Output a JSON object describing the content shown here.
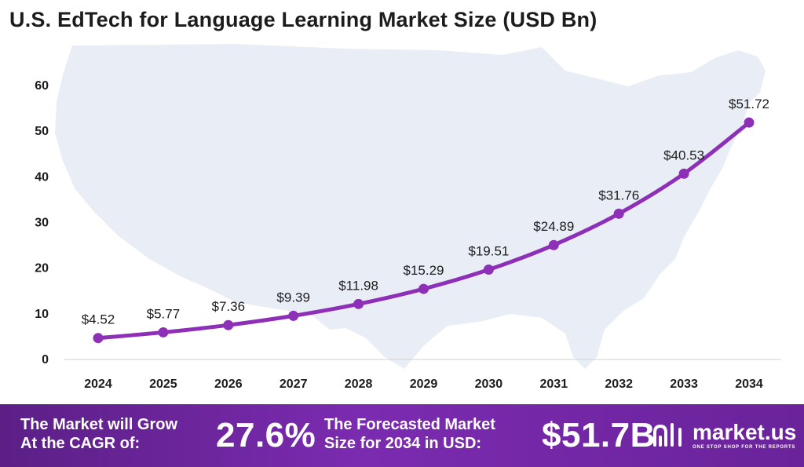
{
  "title": "U.S. EdTech for Language Learning Market Size (USD Bn)",
  "chart_data": {
    "type": "line",
    "title": "U.S. EdTech for Language Learning Market Size (USD Bn)",
    "xlabel": "",
    "ylabel": "",
    "categories": [
      "2024",
      "2025",
      "2026",
      "2027",
      "2028",
      "2029",
      "2030",
      "2031",
      "2032",
      "2033",
      "2034"
    ],
    "values": [
      4.52,
      5.77,
      7.36,
      9.39,
      11.98,
      15.29,
      19.51,
      24.89,
      31.76,
      40.53,
      51.72
    ],
    "data_labels": [
      "$4.52",
      "$5.77",
      "$7.36",
      "$9.39",
      "$11.98",
      "$15.29",
      "$19.51",
      "$24.89",
      "$31.76",
      "$40.53",
      "$51.72"
    ],
    "ylim": [
      0,
      60
    ],
    "yticks": [
      "0",
      "10",
      "20",
      "30",
      "40",
      "50",
      "60"
    ],
    "grid": false,
    "line_color": "#8e2fb8",
    "background_map": "united-states-map"
  },
  "footer": {
    "cagr_label_line1": "The Market will Grow",
    "cagr_label_line2": "At the CAGR of:",
    "cagr_value": "27.6%",
    "forecast_label_line1": "The Forecasted Market",
    "forecast_label_line2": "Size for 2034 in USD:",
    "forecast_value": "$51.7B"
  },
  "brand": {
    "name": "market.us",
    "tagline": "ONE STOP SHOP FOR THE REPORTS",
    "logo_icon": "market-us-logo-icon"
  },
  "colors": {
    "line": "#8e2fb8",
    "footer_bg": "#6a239a",
    "map": "#e9eef6"
  }
}
